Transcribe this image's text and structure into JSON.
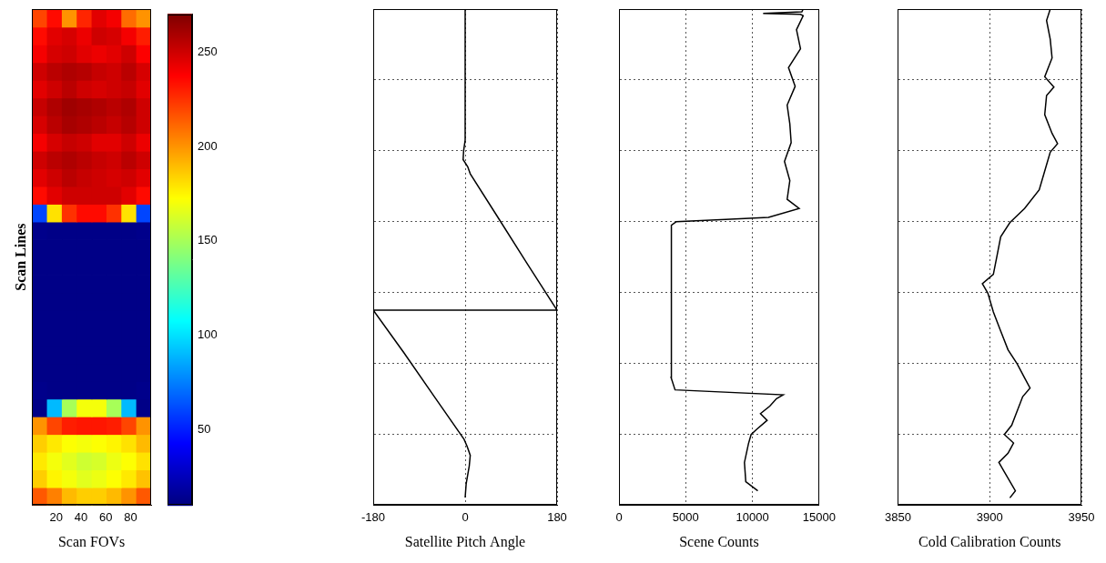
{
  "chart_data": [
    {
      "type": "heatmap",
      "xlabel": "Scan FOVs",
      "ylabel": "Scan Lines",
      "x": [
        6.5,
        18.5,
        30.5,
        42.5,
        54.5,
        66.5,
        78.5,
        90.5
      ],
      "y": [
        25,
        75,
        125,
        175,
        225,
        275,
        325,
        375,
        425,
        475,
        525,
        575,
        625,
        675,
        725,
        775,
        825,
        875,
        925,
        975,
        1025,
        1075,
        1125,
        1175,
        1225,
        1275,
        1325,
        1375
      ],
      "cells": [
        [
          215,
          205,
          190,
          185,
          185,
          190,
          200,
          215
        ],
        [
          185,
          175,
          170,
          165,
          168,
          172,
          178,
          188
        ],
        [
          178,
          170,
          165,
          160,
          162,
          168,
          172,
          180
        ],
        [
          185,
          178,
          172,
          170,
          172,
          175,
          180,
          190
        ],
        [
          200,
          220,
          230,
          232,
          232,
          230,
          220,
          200
        ],
        [
          12,
          90,
          150,
          170,
          170,
          150,
          90,
          12
        ],
        [
          13,
          12,
          12,
          12,
          12,
          12,
          12,
          13
        ],
        [
          12,
          12,
          12,
          12,
          12,
          12,
          12,
          12
        ],
        [
          12,
          12,
          12,
          12,
          12,
          12,
          12,
          12
        ],
        [
          12,
          12,
          12,
          12,
          12,
          12,
          12,
          12
        ],
        [
          12,
          12,
          12,
          12,
          12,
          12,
          12,
          12
        ],
        [
          12,
          12,
          12,
          12,
          12,
          12,
          12,
          12
        ],
        [
          12,
          12,
          12,
          12,
          12,
          12,
          12,
          12
        ],
        [
          12,
          12,
          12,
          12,
          12,
          12,
          12,
          12
        ],
        [
          12,
          12,
          12,
          12,
          12,
          12,
          12,
          12
        ],
        [
          13,
          12,
          12,
          12,
          12,
          12,
          12,
          13
        ],
        [
          60,
          180,
          225,
          235,
          235,
          225,
          180,
          60
        ],
        [
          235,
          245,
          250,
          250,
          250,
          250,
          245,
          235
        ],
        [
          245,
          250,
          255,
          252,
          250,
          248,
          250,
          245
        ],
        [
          250,
          255,
          258,
          255,
          252,
          250,
          255,
          250
        ],
        [
          240,
          248,
          252,
          250,
          245,
          245,
          250,
          242
        ],
        [
          248,
          255,
          260,
          258,
          255,
          252,
          256,
          250
        ],
        [
          252,
          258,
          262,
          260,
          258,
          255,
          258,
          250
        ],
        [
          245,
          250,
          255,
          250,
          248,
          250,
          252,
          245
        ],
        [
          250,
          255,
          258,
          256,
          252,
          250,
          255,
          248
        ],
        [
          240,
          248,
          250,
          245,
          242,
          245,
          250,
          238
        ],
        [
          235,
          245,
          248,
          242,
          250,
          248,
          240,
          230
        ],
        [
          220,
          235,
          200,
          228,
          245,
          240,
          210,
          200
        ]
      ],
      "xlim": [
        0.5,
        96.5
      ],
      "xticks": [
        20,
        40,
        60,
        80
      ],
      "ylim": [
        0,
        1400
      ],
      "color_range": [
        10,
        270
      ],
      "color_ticks": [
        50,
        100,
        150,
        200,
        250
      ],
      "grid": false,
      "tick_labels": "x"
    },
    {
      "type": "line",
      "xlabel": "Satellite Pitch Angle",
      "color": "#000000",
      "x": [
        0,
        2,
        8,
        10,
        4,
        -2,
        -60,
        -120,
        -180,
        180,
        122,
        65,
        10,
        5,
        -4,
        -3,
        0,
        0
      ],
      "y": [
        21,
        60,
        110,
        140,
        165,
        185,
        305,
        430,
        550,
        550,
        680,
        810,
        935,
        955,
        975,
        1000,
        1030,
        1400
      ],
      "xlim": [
        -180,
        180
      ],
      "xticks": [
        -180,
        0,
        180
      ],
      "ylim": [
        0,
        1400
      ],
      "yticks": [
        0,
        200,
        400,
        600,
        800,
        1000,
        1200,
        1400
      ],
      "grid": true,
      "tick_labels": "x"
    },
    {
      "type": "line",
      "xlabel": "Scene Counts",
      "color": "#000000",
      "x": [
        10400,
        9500,
        9400,
        9700,
        9900,
        10300,
        11100,
        10600,
        11300,
        11800,
        12300,
        4200,
        3900,
        3900,
        3950,
        4300,
        8000,
        11200,
        13500,
        12600,
        12800,
        12400,
        12900,
        12800,
        12600,
        13200,
        12700,
        13600,
        13300,
        13800,
        13600,
        10800,
        13700,
        13800
      ],
      "y": [
        40,
        66,
        120,
        173,
        199,
        213,
        239,
        258,
        279,
        300,
        311,
        325,
        360,
        700,
        790,
        800,
        806,
        812,
        837,
        863,
        916,
        970,
        1023,
        1076,
        1129,
        1182,
        1235,
        1288,
        1342,
        1381,
        1385,
        1388,
        1392,
        1400
      ],
      "xlim": [
        0,
        15000
      ],
      "xticks": [
        0,
        5000,
        10000,
        15000
      ],
      "ylim": [
        0,
        1400
      ],
      "yticks": [
        0,
        200,
        400,
        600,
        800,
        1000,
        1200,
        1400
      ],
      "grid": true,
      "tick_labels": "x"
    },
    {
      "type": "line",
      "xlabel": "Cold Calibration Counts",
      "color": "#000000",
      "x": [
        3911,
        3914,
        3908,
        3905,
        3910,
        3913,
        3908,
        3912,
        3914,
        3918,
        3922,
        3919,
        3915,
        3910,
        3906,
        3902,
        3899,
        3896,
        3902,
        3904,
        3906,
        3911,
        3919,
        3927,
        3930,
        3933,
        3937,
        3934,
        3930,
        3931,
        3935,
        3930,
        3934,
        3933,
        3931,
        3933
      ],
      "y": [
        20,
        40,
        93,
        120,
        146,
        175,
        199,
        225,
        252,
        306,
        330,
        359,
        398,
        438,
        491,
        545,
        598,
        625,
        651,
        704,
        757,
        797,
        837,
        890,
        943,
        996,
        1020,
        1049,
        1102,
        1156,
        1180,
        1209,
        1262,
        1315,
        1368,
        1400
      ],
      "xlim": [
        3850,
        3950
      ],
      "xticks": [
        3850,
        3900,
        3950
      ],
      "ylim": [
        0,
        1400
      ],
      "yticks": [
        0,
        200,
        400,
        600,
        800,
        1000,
        1200,
        1400
      ],
      "grid": true,
      "tick_labels": "x"
    }
  ]
}
